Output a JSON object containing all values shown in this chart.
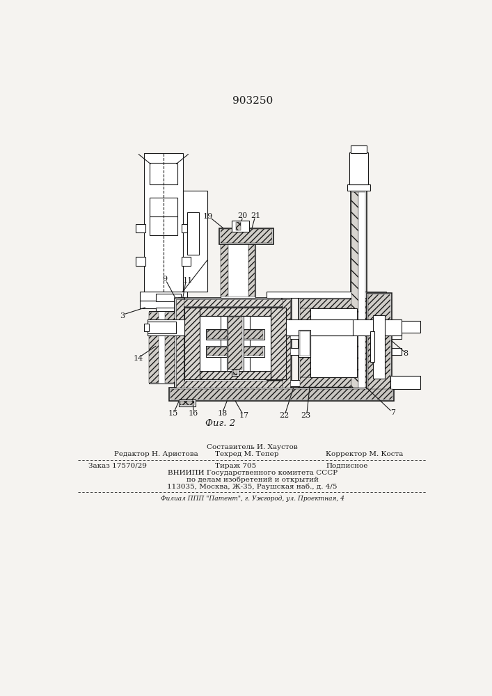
{
  "patent_number": "903250",
  "fig_label": "Фиг. 2",
  "bg_color": "#f5f3f0",
  "line_color": "#1a1a1a",
  "title_fontsize": 11,
  "label_fontsize": 8,
  "footer_fontsize": 7.5,
  "small_fontsize": 6.5,
  "sestavitel": "Составитель И. Хаустов",
  "redaktor": "Редактор Н. Аристова",
  "tekhred": "Техред М. Тепер",
  "korrektor": "Корректор М. Коста",
  "zakaz": "Заказ 17570/29",
  "tirazh": "Тираж 705",
  "podpisnoe": "Подписное",
  "vniipii_line1": "ВНИИПИ Государственного комитета СССР",
  "vniipii_line2": "по делам изобретений и открытий",
  "vniipii_line3": "113035, Москва, Ж-35, Раушская наб., д. 4/5",
  "filial": "Филиал ППП \"Патент\", г. Ужгород, ул. Проектная, 4"
}
